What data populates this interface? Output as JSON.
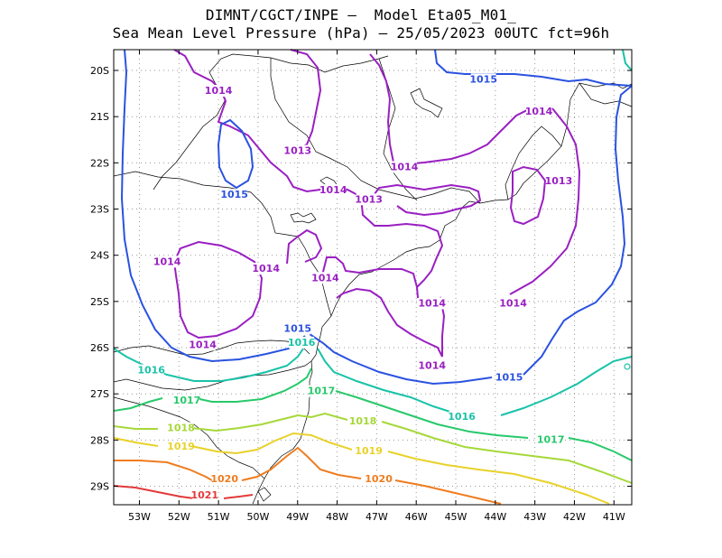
{
  "title": {
    "line1": "DIMNT/CGCT/INPE –  Model Eta05_M01_",
    "line2": "Sea Mean Level Pressure (hPa) – 25/05/2023 00UTC fct=96h"
  },
  "axes": {
    "lon_labels": [
      "53W",
      "52W",
      "51W",
      "50W",
      "49W",
      "48W",
      "47W",
      "46W",
      "45W",
      "44W",
      "43W",
      "42W",
      "41W"
    ],
    "lat_labels": [
      "20S",
      "21S",
      "22S",
      "23S",
      "24S",
      "25S",
      "26S",
      "27S",
      "28S",
      "29S"
    ]
  },
  "colors": {
    "1013": "#9a1fc2",
    "1014": "#9a1fc2",
    "1015": "#2a52e0",
    "1016": "#19c3a8",
    "1017": "#27c96a",
    "1018": "#a6d83a",
    "1019": "#e8d22a",
    "1020": "#ef7c1f",
    "1021": "#e23a3a",
    "coast": "#000000",
    "grid": "#999999"
  },
  "contour_labels": [
    {
      "text": "1014",
      "level": "1014",
      "lon": -51.0,
      "lat": -20.45
    },
    {
      "text": "1013",
      "level": "1013",
      "lon": -49.0,
      "lat": -21.75
    },
    {
      "text": "1014",
      "level": "1014",
      "lon": -48.1,
      "lat": -22.6
    },
    {
      "text": "1013",
      "level": "1013",
      "lon": -47.2,
      "lat": -22.8
    },
    {
      "text": "1014",
      "level": "1014",
      "lon": -46.3,
      "lat": -22.1
    },
    {
      "text": "1014",
      "level": "1014",
      "lon": -42.9,
      "lat": -20.9
    },
    {
      "text": "1013",
      "level": "1013",
      "lon": -42.4,
      "lat": -22.4
    },
    {
      "text": "1015",
      "level": "1015",
      "lon": -44.3,
      "lat": -20.2
    },
    {
      "text": "1015",
      "level": "1015",
      "lon": -50.6,
      "lat": -22.7
    },
    {
      "text": "1014",
      "level": "1014",
      "lon": -52.3,
      "lat": -24.15
    },
    {
      "text": "1014",
      "level": "1014",
      "lon": -49.8,
      "lat": -24.3
    },
    {
      "text": "1014",
      "level": "1014",
      "lon": -48.3,
      "lat": -24.5
    },
    {
      "text": "1014",
      "level": "1014",
      "lon": -45.6,
      "lat": -25.05
    },
    {
      "text": "1014",
      "level": "1014",
      "lon": -43.55,
      "lat": -25.05
    },
    {
      "text": "1014",
      "level": "1014",
      "lon": -51.4,
      "lat": -25.95
    },
    {
      "text": "1014",
      "level": "1014",
      "lon": -45.6,
      "lat": -26.4
    },
    {
      "text": "1015",
      "level": "1015",
      "lon": -49.0,
      "lat": -25.6
    },
    {
      "text": "1015",
      "level": "1015",
      "lon": -43.65,
      "lat": -26.65
    },
    {
      "text": "1016",
      "level": "1016",
      "lon": -48.9,
      "lat": -25.9
    },
    {
      "text": "1016",
      "level": "1016",
      "lon": -52.7,
      "lat": -26.5
    },
    {
      "text": "1016",
      "level": "1016",
      "lon": -44.85,
      "lat": -27.5
    },
    {
      "text": "1017",
      "level": "1017",
      "lon": -51.8,
      "lat": -27.15
    },
    {
      "text": "1017",
      "level": "1017",
      "lon": -48.4,
      "lat": -26.95
    },
    {
      "text": "1017",
      "level": "1017",
      "lon": -42.6,
      "lat": -28.0
    },
    {
      "text": "1018",
      "level": "1018",
      "lon": -51.95,
      "lat": -27.75
    },
    {
      "text": "1018",
      "level": "1018",
      "lon": -47.35,
      "lat": -27.6
    },
    {
      "text": "1019",
      "level": "1019",
      "lon": -51.95,
      "lat": -28.15
    },
    {
      "text": "1019",
      "level": "1019",
      "lon": -47.2,
      "lat": -28.25
    },
    {
      "text": "1020",
      "level": "1020",
      "lon": -50.85,
      "lat": -28.85
    },
    {
      "text": "1020",
      "level": "1020",
      "lon": -46.95,
      "lat": -28.85
    },
    {
      "text": "1021",
      "level": "1021",
      "lon": -51.35,
      "lat": -29.2
    }
  ]
}
